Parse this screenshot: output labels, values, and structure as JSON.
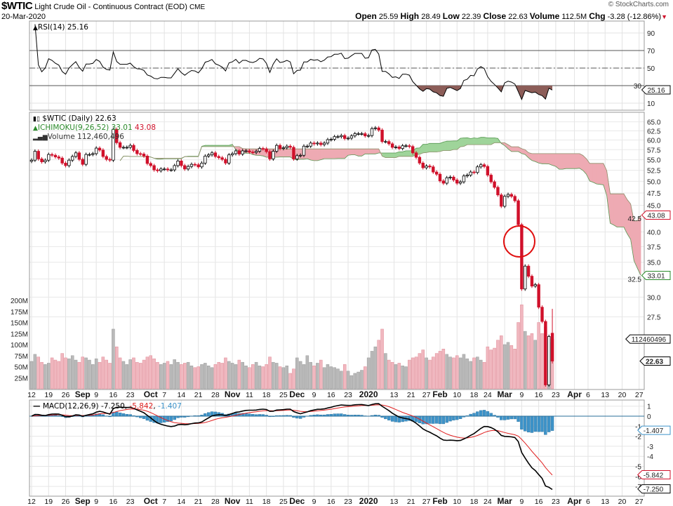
{
  "header": {
    "symbol": "$WTIC",
    "name": "Light Crude Oil - Continuous Contract (EOD)",
    "exchange": "CME",
    "date": "20-Mar-2020",
    "copyright": "© StockCharts.com",
    "open_label": "Open",
    "open": "25.59",
    "high_label": "High",
    "high": "28.49",
    "low_label": "Low",
    "low": "22.39",
    "close_label": "Close",
    "close": "22.63",
    "volume_label": "Volume",
    "volume": "112.5M",
    "chg_label": "Chg",
    "chg": "-3.28 (-12.86%)",
    "chg_arrow": "▼"
  },
  "legends": {
    "rsi": "RSI(14) 25.16",
    "price": "$WTIC (Daily) 22.63",
    "ichimoku": "ICHIMOKU(9,26,52)",
    "ichimoku_a": "33.01",
    "ichimoku_b": "43.08",
    "volume": "Volume 112,460,496",
    "macd": "MACD(12,26,9)",
    "macd_v": "-7.250",
    "macd_sig": "-5.842",
    "macd_hist": "-1.407"
  },
  "colors": {
    "up": "#000000",
    "down": "#d0102a",
    "cloud_green": "#9fd49a",
    "cloud_red": "#eeaab3",
    "vol_up": "#b9b9b9",
    "vol_down": "#f0b7bf",
    "hist": "#3d93c9",
    "signal": "#e02020",
    "rsi_fill": "#8c5d58"
  },
  "chart_data": [
    {
      "type": "line",
      "title": "RSI(14)",
      "ylim": [
        0,
        100
      ],
      "yticks": [
        90,
        70,
        50,
        30,
        10
      ],
      "reference_lines": [
        70,
        50,
        30
      ],
      "last_value": 25.16
    },
    {
      "type": "candlestick",
      "title": "$WTIC (Daily)",
      "scale": "log",
      "yticks": [
        "65.0",
        "62.5",
        "60.0",
        "57.5",
        "55.0",
        "52.5",
        "50.0",
        "47.5",
        "45.0",
        "42.5",
        "40.0",
        "37.5",
        "35.0",
        "32.5",
        "30.0",
        "27.5"
      ],
      "last_close": 22.63,
      "last_open": 25.59,
      "last_high": 28.49,
      "last_low": 22.39,
      "closes": [
        54.9,
        57.1,
        55.2,
        54.5,
        54.9,
        56.3,
        56.1,
        55.7,
        55.4,
        54.2,
        53.6,
        54.9,
        55.8,
        56.7,
        55.1,
        53.9,
        56.3,
        56.3,
        56.5,
        57.9,
        57.4,
        55.8,
        55.1,
        54.9,
        62.9,
        59.3,
        58.1,
        58.1,
        58.1,
        58.6,
        57.3,
        56.5,
        56.4,
        55.9,
        54.1,
        53.6,
        52.6,
        52.4,
        52.8,
        52.8,
        52.6,
        52.6,
        53.6,
        54.7,
        53.6,
        52.8,
        53.4,
        53.9,
        53.8,
        53.3,
        54.2,
        55.9,
        56.2,
        56.7,
        55.8,
        55.5,
        55.1,
        54.2,
        56.2,
        56.5,
        57.2,
        56.4,
        57.2,
        57.2,
        56.9,
        56.8,
        57.1,
        57.8,
        57.7,
        57.0,
        55.2,
        57.1,
        58.6,
        57.8,
        58.0,
        58.4,
        58.1,
        55.2,
        56.0,
        56.1,
        58.4,
        58.4,
        59.2,
        59.0,
        59.2,
        58.8,
        59.2,
        60.1,
        60.2,
        60.9,
        60.9,
        61.2,
        60.4,
        60.5,
        61.1,
        61.7,
        61.7,
        61.7,
        61.1,
        61.2,
        63.1,
        63.3,
        62.7,
        59.6,
        59.6,
        59.0,
        58.1,
        58.2,
        57.8,
        58.5,
        58.5,
        58.3,
        56.7,
        55.6,
        54.2,
        53.1,
        53.5,
        53.3,
        52.1,
        51.6,
        50.1,
        49.6,
        50.8,
        50.95,
        50.3,
        49.6,
        49.9,
        51.2,
        51.4,
        52.1,
        52.0,
        53.3,
        53.8,
        53.4,
        51.4,
        49.9,
        48.7,
        47.1,
        44.8,
        46.8,
        47.2,
        46.8,
        45.9,
        41.3,
        31.1,
        34.4,
        32.9,
        31.5,
        31.7,
        28.7,
        26.95,
        20.37,
        25.22,
        22.63
      ],
      "ichimoku": {
        "span_a_last": 33.01,
        "span_b_last": 43.08
      },
      "volume_m": [
        62,
        78,
        72,
        60,
        55,
        58,
        70,
        65,
        62,
        80,
        70,
        68,
        75,
        65,
        60,
        72,
        70,
        65,
        55,
        68,
        60,
        72,
        65,
        58,
        135,
        95,
        70,
        62,
        55,
        66,
        70,
        60,
        58,
        65,
        72,
        75,
        68,
        60,
        55,
        58,
        62,
        55,
        66,
        60,
        55,
        58,
        60,
        52,
        48,
        50,
        55,
        58,
        52,
        48,
        55,
        60,
        58,
        70,
        62,
        58,
        55,
        65,
        60,
        52,
        48,
        55,
        60,
        52,
        50,
        55,
        72,
        60,
        58,
        50,
        48,
        52,
        35,
        45,
        70,
        62,
        55,
        75,
        60,
        52,
        58,
        65,
        48,
        55,
        50,
        48,
        45,
        40,
        55,
        40,
        30,
        35,
        38,
        42,
        50,
        70,
        85,
        95,
        110,
        135,
        80,
        65,
        60,
        55,
        58,
        52,
        50,
        65,
        70,
        72,
        80,
        88,
        70,
        65,
        72,
        80,
        85,
        90,
        78,
        72,
        70,
        75,
        70,
        78,
        68,
        62,
        70,
        72,
        65,
        60,
        95,
        88,
        92,
        110,
        120,
        100,
        105,
        98,
        90,
        150,
        190,
        130,
        120,
        125,
        110,
        150,
        125,
        140,
        105,
        112.46
      ],
      "volume_ticks": [
        "200M",
        "175M",
        "150M",
        "125M",
        "100M",
        "75M",
        "50M",
        "25M"
      ],
      "volume_last": "112460496",
      "annotation": "red circle around the Mar 6–9 gap"
    },
    {
      "type": "line",
      "title": "MACD(12,26,9)",
      "yticks": [
        "1",
        "0",
        "-1",
        "-2",
        "-3",
        "-4",
        "-5",
        "-6",
        "-7"
      ],
      "last_macd": -7.25,
      "last_signal": -5.842,
      "last_hist": -1.407
    }
  ],
  "x_axis": {
    "ticks": [
      {
        "label": "12",
        "i": 0
      },
      {
        "label": "19",
        "i": 5
      },
      {
        "label": "26",
        "i": 10
      },
      {
        "label": "Sep",
        "i": 15,
        "bold": true
      },
      {
        "label": "9",
        "i": 19
      },
      {
        "label": "16",
        "i": 24
      },
      {
        "label": "23",
        "i": 29
      },
      {
        "label": "Oct",
        "i": 35,
        "bold": true
      },
      {
        "label": "7",
        "i": 39
      },
      {
        "label": "14",
        "i": 44
      },
      {
        "label": "21",
        "i": 49
      },
      {
        "label": "28",
        "i": 54
      },
      {
        "label": "Nov",
        "i": 59,
        "bold": true
      },
      {
        "label": "11",
        "i": 64
      },
      {
        "label": "18",
        "i": 69
      },
      {
        "label": "25",
        "i": 74
      },
      {
        "label": "Dec",
        "i": 78,
        "bold": true
      },
      {
        "label": "9",
        "i": 83
      },
      {
        "label": "16",
        "i": 88
      },
      {
        "label": "23",
        "i": 93
      },
      {
        "label": "2020",
        "i": 99,
        "bold": true
      },
      {
        "label": "13",
        "i": 106.5
      },
      {
        "label": "21",
        "i": 111.5
      },
      {
        "label": "27",
        "i": 116
      },
      {
        "label": "Feb",
        "i": 120,
        "bold": true
      },
      {
        "label": "10",
        "i": 125
      },
      {
        "label": "18",
        "i": 130
      },
      {
        "label": "24",
        "i": 134
      },
      {
        "label": "Mar",
        "i": 139,
        "bold": true
      },
      {
        "label": "9",
        "i": 144
      },
      {
        "label": "16",
        "i": 149
      },
      {
        "label": "23",
        "i": 154
      },
      {
        "label": "Apr",
        "i": 159.5,
        "bold": true
      },
      {
        "label": "6",
        "i": 163.5
      },
      {
        "label": "13",
        "i": 168.5
      },
      {
        "label": "20",
        "i": 173.5
      },
      {
        "label": "27",
        "i": 178.5
      }
    ]
  }
}
